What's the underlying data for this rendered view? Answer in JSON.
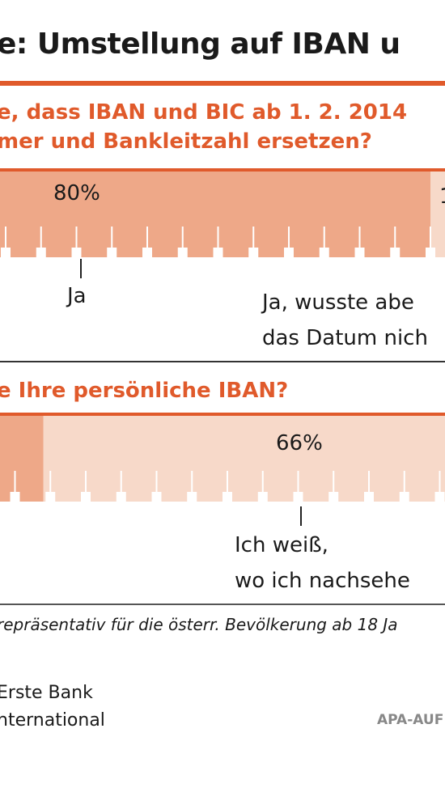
{
  "title": "e: Umstellung auf IBAN u",
  "colors": {
    "accent": "#e05a2b",
    "bar_dark": "#eea888",
    "bar_light": "#f7d9c9",
    "tick": "#ffffff"
  },
  "chart_data": [
    {
      "type": "bar",
      "question": [
        "e, dass IBAN und BIC ab 1. 2. 2014",
        "mer und Bankleitzahl ersetzen?"
      ],
      "series": [
        {
          "label": "Ja",
          "value": 80
        },
        {
          "label": "Ja, wusste abe\ndas Datum nich",
          "value": 20
        }
      ],
      "value_labels": [
        "80%",
        "1"
      ]
    },
    {
      "type": "bar",
      "question": [
        "e Ihre persönliche IBAN?"
      ],
      "series": [
        {
          "label": "",
          "value": 34
        },
        {
          "label": "Ich weiß,\nwo ich nachsehe",
          "value": 66
        }
      ],
      "value_labels": [
        "66%"
      ]
    }
  ],
  "footnote": "repräsentativ für die österr. Bevölkerung ab 18 Ja",
  "source": "Erste Bank\nnternational",
  "credit": "APA-AUF"
}
